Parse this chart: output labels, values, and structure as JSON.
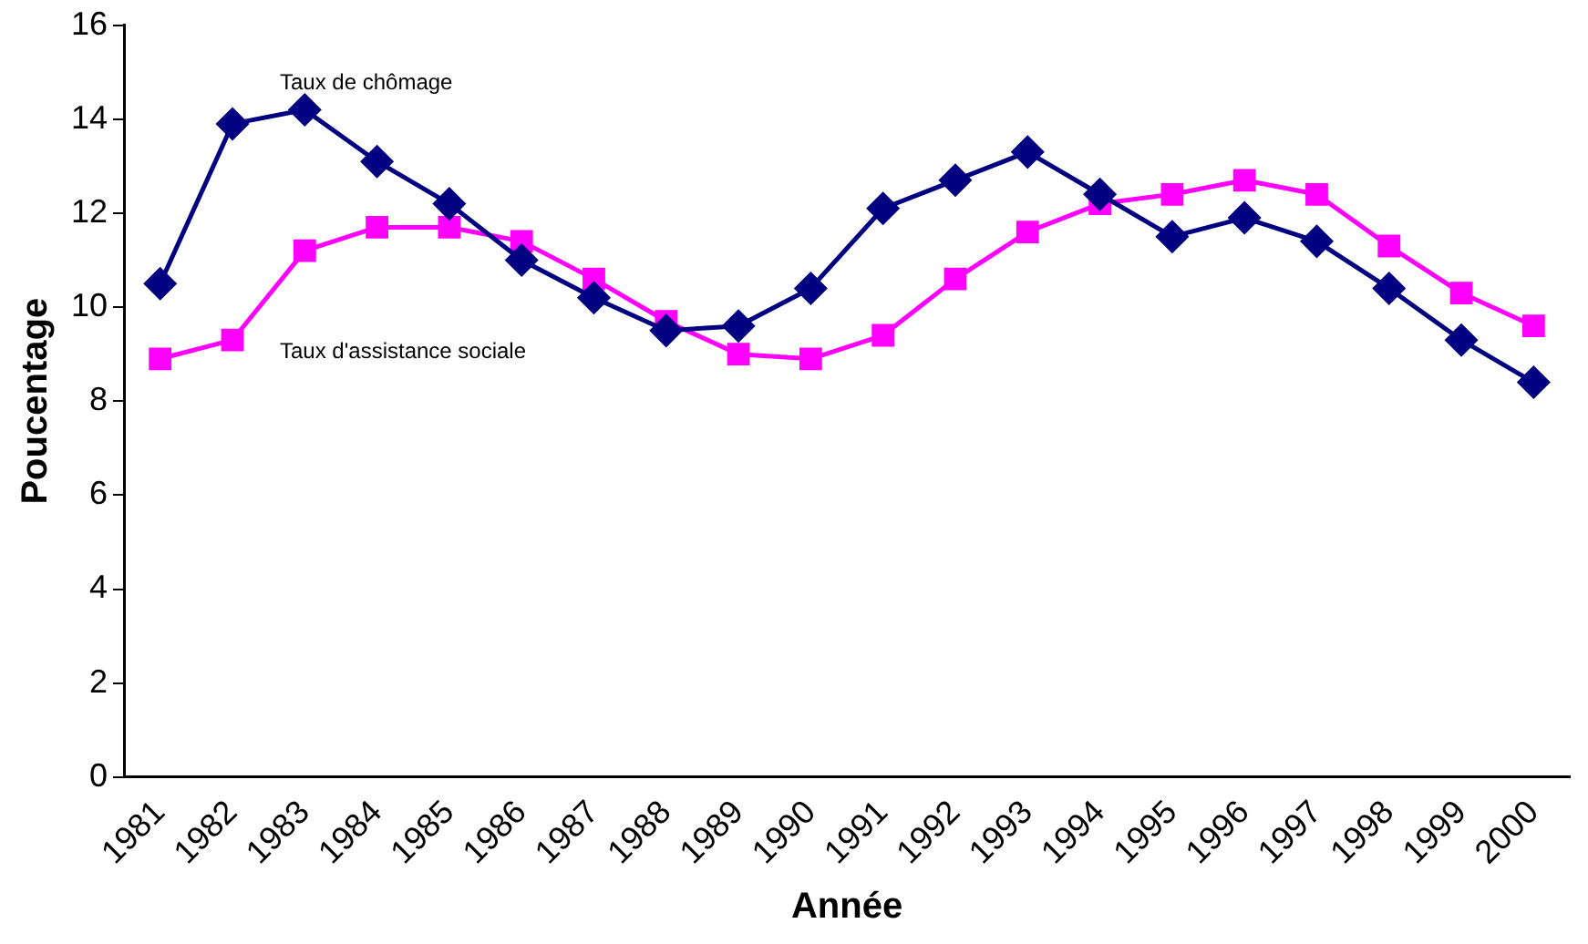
{
  "chart_data": {
    "type": "line",
    "xlabel": "Année",
    "ylabel": "Poucentage",
    "categories": [
      "1981",
      "1982",
      "1983",
      "1984",
      "1985",
      "1986",
      "1987",
      "1988",
      "1989",
      "1990",
      "1991",
      "1992",
      "1993",
      "1994",
      "1995",
      "1996",
      "1997",
      "1998",
      "1999",
      "2000"
    ],
    "series": [
      {
        "name": "Taux de chômage",
        "color": "#000080",
        "marker": "diamond",
        "values": [
          10.5,
          13.9,
          14.2,
          13.1,
          12.2,
          11.0,
          10.2,
          9.5,
          9.6,
          10.4,
          12.1,
          12.7,
          13.3,
          12.4,
          11.5,
          11.9,
          11.4,
          10.4,
          9.3,
          8.4
        ]
      },
      {
        "name": "Taux d'assistance sociale",
        "color": "#ff00ff",
        "marker": "square",
        "values": [
          8.9,
          9.3,
          11.2,
          11.7,
          11.7,
          11.4,
          10.6,
          9.7,
          9.0,
          8.9,
          9.4,
          10.6,
          11.6,
          12.2,
          12.4,
          12.7,
          12.4,
          11.3,
          10.3,
          9.6
        ]
      }
    ],
    "ylim": [
      0,
      16
    ],
    "yticks": [
      0,
      2,
      4,
      6,
      8,
      10,
      12,
      14,
      16
    ],
    "grid": false,
    "legend": false
  }
}
